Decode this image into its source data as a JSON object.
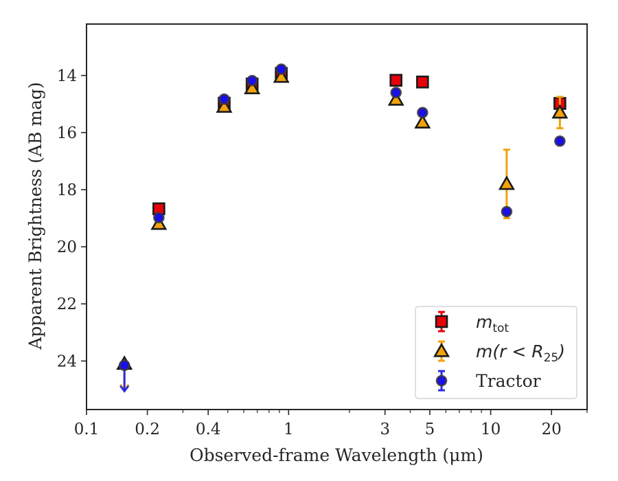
{
  "chart_data": {
    "type": "scatter",
    "xlabel": "Observed-frame Wavelength (μm)",
    "ylabel": "Apparent Brightness (AB mag)",
    "x_scale": "log",
    "xlim": [
      0.1,
      30
    ],
    "ylim": [
      25.7,
      12.2
    ],
    "y_inverted": true,
    "grid": false,
    "legend_position": "lower-right",
    "x_ticks": [
      {
        "value": 0.1,
        "label": "0.1"
      },
      {
        "value": 0.2,
        "label": "0.2"
      },
      {
        "value": 0.4,
        "label": "0.4"
      },
      {
        "value": 1,
        "label": "1"
      },
      {
        "value": 3,
        "label": "3"
      },
      {
        "value": 5,
        "label": "5"
      },
      {
        "value": 10,
        "label": "10"
      },
      {
        "value": 20,
        "label": "20"
      }
    ],
    "x_minor_ticks": [
      0.3,
      0.5,
      0.6,
      0.7,
      0.8,
      0.9,
      2,
      4,
      6,
      7,
      8,
      9,
      30
    ],
    "y_ticks": [
      {
        "value": 14,
        "label": "14"
      },
      {
        "value": 16,
        "label": "16"
      },
      {
        "value": 18,
        "label": "18"
      },
      {
        "value": 20,
        "label": "20"
      },
      {
        "value": 22,
        "label": "22"
      },
      {
        "value": 24,
        "label": "24"
      }
    ],
    "series": [
      {
        "name": "m_tot",
        "legend_main": "m",
        "legend_sub": "tot",
        "marker": "square",
        "color": "#e8000b",
        "edge": "#1a1a1a",
        "errcolor": "#e8000b",
        "points": [
          {
            "x": 0.228,
            "y": 18.67,
            "err": 0.12
          },
          {
            "x": 0.48,
            "y": 14.97,
            "err": 0.1
          },
          {
            "x": 0.66,
            "y": 14.3,
            "err": 0.1
          },
          {
            "x": 0.92,
            "y": 13.93,
            "err": 0.1
          },
          {
            "x": 3.4,
            "y": 14.17,
            "err": 0.05
          },
          {
            "x": 4.6,
            "y": 14.23,
            "err": 0.05
          },
          {
            "x": 22.0,
            "y": 14.98,
            "err": 0.15
          }
        ]
      },
      {
        "name": "m(r<R25)",
        "legend_main": "m(r < R",
        "legend_sub": "25",
        "legend_tail": ")",
        "marker": "triangle",
        "color": "#f2a20c",
        "edge": "#1a1a1a",
        "errcolor": "#f2a20c",
        "points": [
          {
            "x": 0.154,
            "y": 24.1,
            "upper_limit": true
          },
          {
            "x": 0.228,
            "y": 19.2,
            "err": 0.05
          },
          {
            "x": 0.48,
            "y": 15.1,
            "err": 0.05
          },
          {
            "x": 0.66,
            "y": 14.45,
            "err": 0.05
          },
          {
            "x": 0.92,
            "y": 14.05,
            "err": 0.05
          },
          {
            "x": 3.4,
            "y": 14.85,
            "err": 0.05
          },
          {
            "x": 4.6,
            "y": 15.65,
            "err": 0.05
          },
          {
            "x": 12.0,
            "y": 17.8,
            "err": 1.2
          },
          {
            "x": 22.0,
            "y": 15.3,
            "err": 0.55
          }
        ]
      },
      {
        "name": "Tractor",
        "legend_main": "Tractor",
        "marker": "circle",
        "color": "#1a0fe8",
        "edge": "#3a3a3a",
        "errcolor": "#2a2ae0",
        "points": [
          {
            "x": 0.154,
            "y": 24.15,
            "upper_limit": true
          },
          {
            "x": 0.228,
            "y": 18.98,
            "err": 0.05
          },
          {
            "x": 0.48,
            "y": 14.83,
            "err": 0.03
          },
          {
            "x": 0.66,
            "y": 14.18,
            "err": 0.03
          },
          {
            "x": 0.92,
            "y": 13.78,
            "err": 0.03
          },
          {
            "x": 3.4,
            "y": 14.6,
            "err": 0.03
          },
          {
            "x": 4.6,
            "y": 15.3,
            "err": 0.03
          },
          {
            "x": 12.0,
            "y": 18.77,
            "err": 0.08
          },
          {
            "x": 22.0,
            "y": 16.3,
            "err": 0.05
          }
        ]
      }
    ]
  }
}
